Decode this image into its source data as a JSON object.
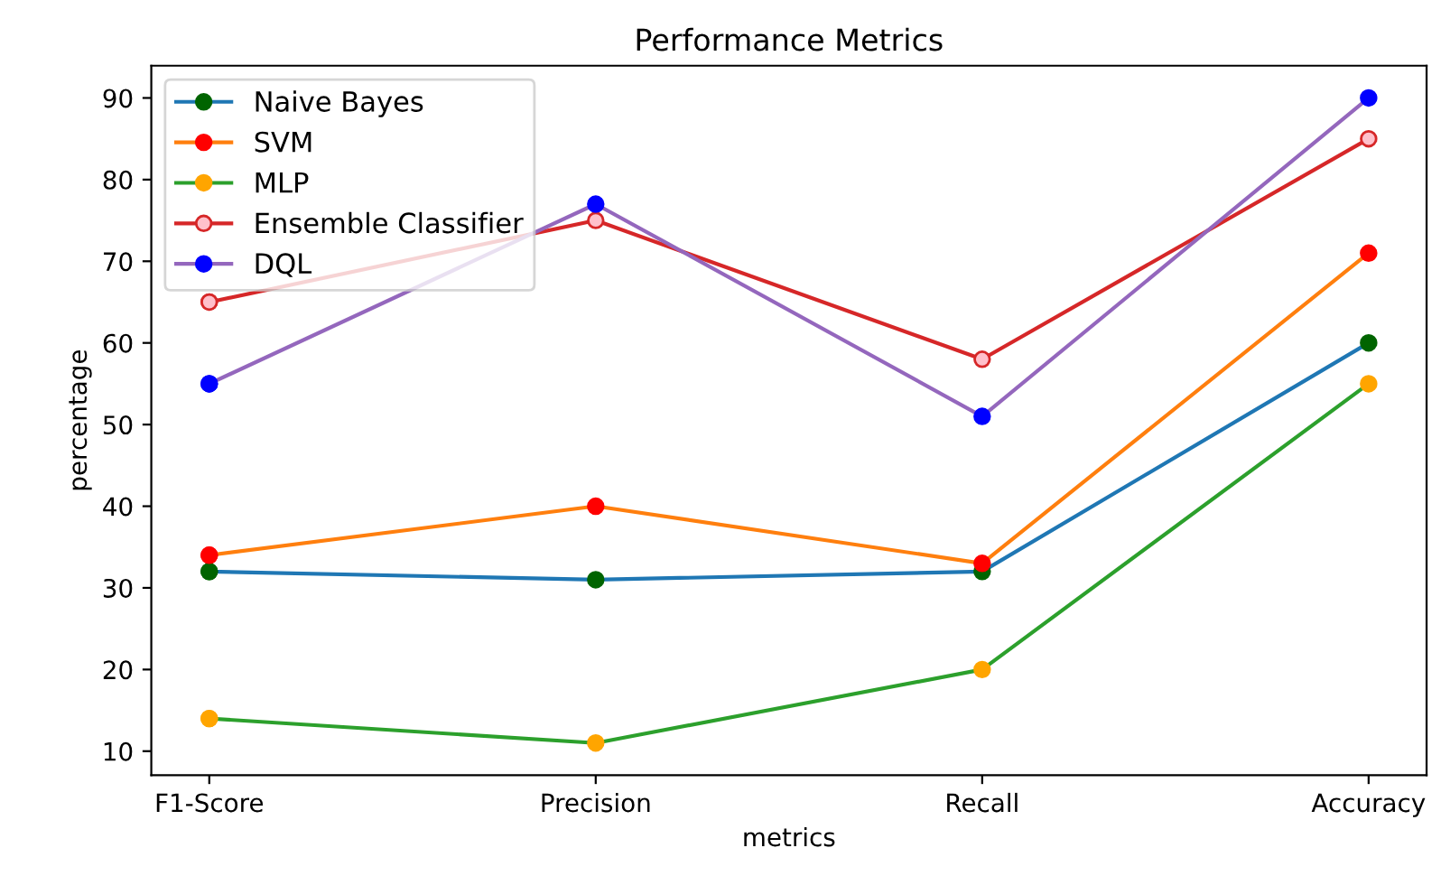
{
  "chart_data": {
    "type": "line",
    "title": "Performance Metrics",
    "xlabel": "metrics",
    "ylabel": "percentage",
    "categories": [
      "F1-Score",
      "Precision",
      "Recall",
      "Accuracy"
    ],
    "series": [
      {
        "name": "Naive Bayes",
        "color": "#1f77b4",
        "colors": [
          "#006400",
          "#006400",
          "#006400",
          "#006400"
        ],
        "values": [
          32,
          31,
          32,
          60
        ]
      },
      {
        "name": "SVM",
        "color": "#ff7f0e",
        "colors": [
          "#ff0000",
          "#ff0000",
          "#ff0000",
          "#ff0000"
        ],
        "values": [
          34,
          40,
          33,
          71
        ]
      },
      {
        "name": "MLP",
        "color": "#2ca02c",
        "colors": [
          "#ffa500",
          "#ffa500",
          "#ffa500",
          "#ffa500"
        ],
        "values": [
          14,
          11,
          20,
          55
        ]
      },
      {
        "name": "Ensemble Classifier",
        "color": "#d62728",
        "colors": [
          "#ffc0cb",
          "#ffc0cb",
          "#ffc0cb",
          "#ffc0cb"
        ],
        "values": [
          65,
          75,
          58,
          85
        ]
      },
      {
        "name": "DQL",
        "color": "#9467bd",
        "colors": [
          "#0000ff",
          "#0000ff",
          "#0000ff",
          "#0000ff"
        ],
        "values": [
          55,
          77,
          51,
          90
        ]
      }
    ],
    "ylim": [
      7.05,
      93.95
    ],
    "yticks": [
      10,
      20,
      30,
      40,
      50,
      60,
      70,
      80,
      90
    ],
    "marker": "circle",
    "line_style": "solid",
    "grid": false,
    "legend": "top left"
  }
}
